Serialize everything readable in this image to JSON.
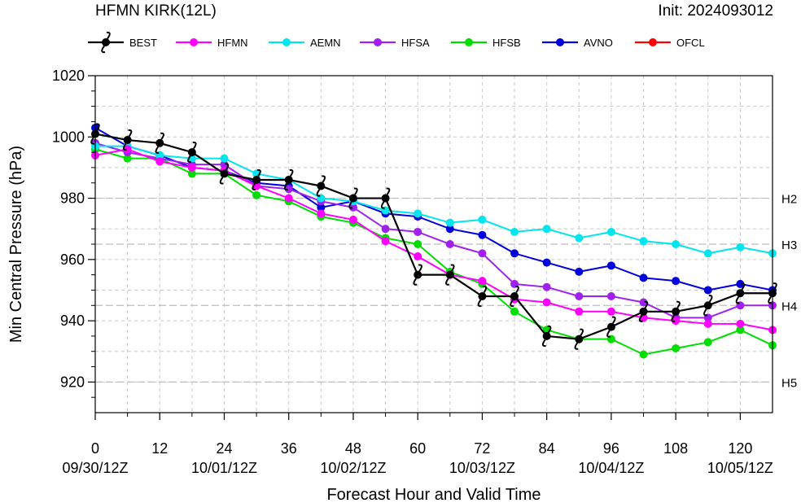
{
  "header": {
    "title": "HFMN KIRK(12L)",
    "init": "Init: 2024093012"
  },
  "chart_data": {
    "type": "line",
    "xlabel": "Forecast Hour and Valid Time",
    "ylabel": "Min Central Pressure (hPa)",
    "xlim": [
      0,
      126
    ],
    "ylim": [
      910,
      1020
    ],
    "x_ticks": [
      0,
      12,
      24,
      36,
      48,
      60,
      72,
      84,
      96,
      108,
      120
    ],
    "x_tick_dates": [
      "09/30/12Z",
      "10/01/12Z",
      "10/02/12Z",
      "10/03/12Z",
      "10/04/12Z",
      "10/05/12Z"
    ],
    "x_tick_date_hours": [
      0,
      24,
      48,
      72,
      96,
      120
    ],
    "y_ticks": [
      920,
      940,
      960,
      980,
      1000,
      1020
    ],
    "grid": true,
    "legend_position": "top",
    "categories": [
      {
        "label": "H2",
        "value": 980
      },
      {
        "label": "H3",
        "value": 965
      },
      {
        "label": "H4",
        "value": 945
      },
      {
        "label": "H5",
        "value": 920
      }
    ],
    "series": [
      {
        "name": "BEST",
        "color": "#000000",
        "marker": "hurricane",
        "x": [
          0,
          6,
          12,
          18,
          24,
          30,
          36,
          42,
          48,
          54,
          60,
          66,
          72,
          78,
          84,
          90,
          96,
          102,
          108,
          114,
          120,
          126
        ],
        "y": [
          1001,
          999,
          998,
          995,
          988,
          986,
          986,
          984,
          980,
          980,
          955,
          955,
          948,
          948,
          935,
          934,
          938,
          943,
          943,
          945,
          949,
          949
        ]
      },
      {
        "name": "HFMN",
        "color": "#ff00ff",
        "marker": "circle",
        "x": [
          0,
          6,
          12,
          18,
          24,
          30,
          36,
          42,
          48,
          54,
          60,
          66,
          72,
          78,
          84,
          90,
          96,
          102,
          108,
          114,
          120,
          126
        ],
        "y": [
          994,
          996,
          992,
          990,
          989,
          984,
          980,
          975,
          973,
          966,
          961,
          955,
          953,
          947,
          946,
          943,
          943,
          941,
          940,
          939,
          939,
          937
        ]
      },
      {
        "name": "AEMN",
        "color": "#00e5ee",
        "marker": "circle",
        "x": [
          0,
          6,
          12,
          18,
          24,
          30,
          36,
          42,
          48,
          54,
          60,
          66,
          72,
          78,
          84,
          90,
          96,
          102,
          108,
          114,
          120,
          126
        ],
        "y": [
          997,
          997,
          994,
          993,
          993,
          988,
          986,
          980,
          979,
          976,
          975,
          972,
          973,
          969,
          970,
          967,
          969,
          966,
          965,
          962,
          964,
          962
        ]
      },
      {
        "name": "HFSA",
        "color": "#a020f0",
        "marker": "circle",
        "x": [
          0,
          6,
          12,
          18,
          24,
          30,
          36,
          42,
          48,
          54,
          60,
          66,
          72,
          78,
          84,
          90,
          96,
          102,
          108,
          114,
          120,
          126
        ],
        "y": [
          998,
          995,
          993,
          991,
          991,
          984,
          983,
          979,
          977,
          970,
          969,
          965,
          962,
          952,
          951,
          948,
          948,
          946,
          941,
          941,
          945,
          945
        ]
      },
      {
        "name": "HFSB",
        "color": "#00dd00",
        "marker": "circle",
        "x": [
          0,
          6,
          12,
          18,
          24,
          30,
          36,
          42,
          48,
          54,
          60,
          66,
          72,
          78,
          84,
          90,
          96,
          102,
          108,
          114,
          120,
          126
        ],
        "y": [
          996,
          993,
          993,
          988,
          988,
          981,
          979,
          974,
          972,
          967,
          965,
          956,
          952,
          943,
          937,
          934,
          934,
          929,
          931,
          933,
          937,
          932
        ]
      },
      {
        "name": "AVNO",
        "color": "#0000dd",
        "marker": "circle",
        "x": [
          0,
          6,
          12,
          18,
          24,
          30,
          36,
          42,
          48,
          54,
          60,
          66,
          72,
          78,
          84,
          90,
          96,
          102,
          108,
          114,
          120,
          126
        ],
        "y": [
          1003,
          997,
          994,
          990,
          989,
          985,
          984,
          977,
          979,
          975,
          974,
          970,
          968,
          962,
          959,
          956,
          958,
          954,
          953,
          950,
          952,
          950
        ]
      },
      {
        "name": "OFCL",
        "color": "#ff0000",
        "marker": "circle",
        "x": [],
        "y": []
      }
    ]
  }
}
